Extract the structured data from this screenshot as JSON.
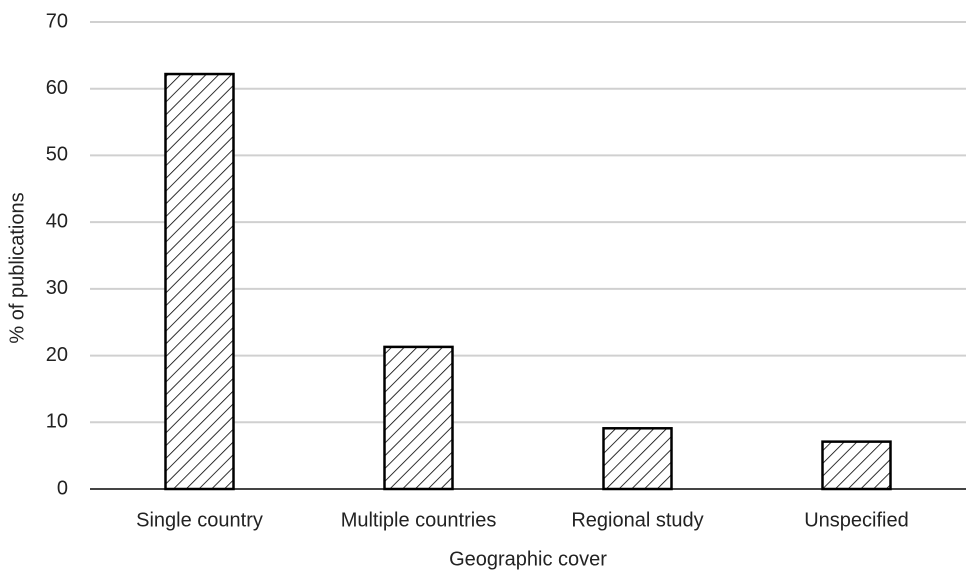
{
  "chart_data": {
    "type": "bar",
    "x_label": "Geographic cover",
    "y_label": "% of publications",
    "categories": [
      "Single country",
      "Multiple countries",
      "Regional study",
      "Unspecified"
    ],
    "values": [
      62.2,
      21.3,
      9.1,
      7.1
    ],
    "color": "#000000",
    "ylim": [
      0,
      70
    ],
    "yticks": [
      0,
      10,
      20,
      30,
      40,
      50,
      60,
      70
    ],
    "grid": true
  }
}
